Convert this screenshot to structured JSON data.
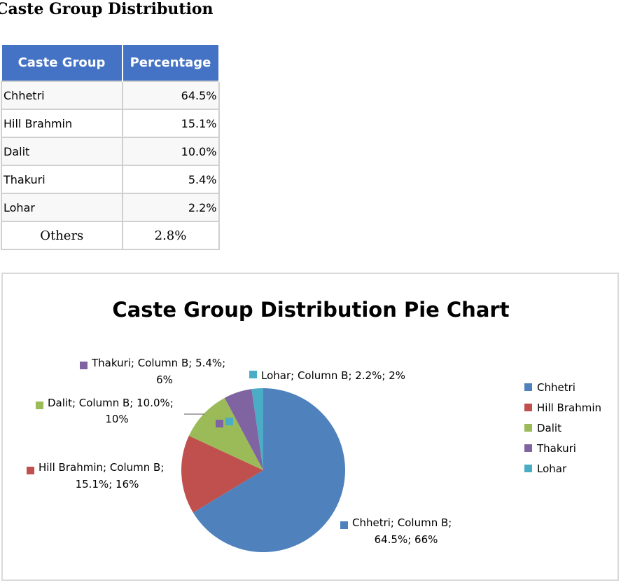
{
  "sheet_title": "Caste Group Distribution",
  "table": {
    "headers": [
      "Caste Group",
      "Percentage"
    ],
    "rows": [
      [
        "Chhetri",
        "64.5%"
      ],
      [
        "Hill Brahmin",
        "15.1%"
      ],
      [
        "Dalit",
        "10.0%"
      ],
      [
        "Thakuri",
        "5.4%"
      ],
      [
        "Lohar",
        "2.2%"
      ],
      [
        "Others",
        "2.8%"
      ]
    ]
  },
  "chart_data": {
    "type": "pie",
    "title": "Caste Group Distribution Pie Chart",
    "categories": [
      "Chhetri",
      "Hill Brahmin",
      "Dalit",
      "Thakuri",
      "Lohar"
    ],
    "values": [
      64.5,
      15.1,
      10.0,
      5.4,
      2.2
    ],
    "colors": [
      "#4f81bd",
      "#c0504d",
      "#9bbb59",
      "#8064a2",
      "#4bacc6"
    ],
    "data_labels": [
      "Chhetri; Column B; 64.5%; 66%",
      "Hill Brahmin; Column B; 15.1%; 16%",
      "Dalit; Column B; 10.0%; 10%",
      "Thakuri; Column B; 5.4%; 6%",
      "Lohar; Column B; 2.2%; 2%"
    ],
    "legend_position": "right"
  }
}
